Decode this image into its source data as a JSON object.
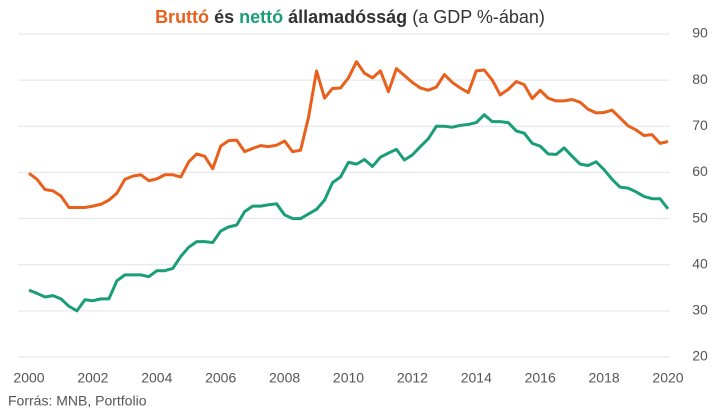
{
  "chart_data": {
    "type": "line",
    "series": [
      {
        "name": "Bruttó",
        "color": "#e8601c",
        "values": [
          59.8,
          58.5,
          56.3,
          56.0,
          54.9,
          52.4,
          52.4,
          52.4,
          52.7,
          53.1,
          54.0,
          55.5,
          58.5,
          59.2,
          59.5,
          58.2,
          58.6,
          59.5,
          59.5,
          59.0,
          62.3,
          64.0,
          63.5,
          60.8,
          65.7,
          66.9,
          67.0,
          64.5,
          65.2,
          65.8,
          65.6,
          65.9,
          66.8,
          64.5,
          64.8,
          72.0,
          82.0,
          76.1,
          78.2,
          78.3,
          80.5,
          84.0,
          81.5,
          80.5,
          82.0,
          77.5,
          82.5,
          81.0,
          79.5,
          78.3,
          77.8,
          78.5,
          81.2,
          79.5,
          78.3,
          77.3,
          82.0,
          82.2,
          80.0,
          76.8,
          78.0,
          79.7,
          79.0,
          76.0,
          77.8,
          76.1,
          75.5,
          75.5,
          75.8,
          75.2,
          73.7,
          72.9,
          73.0,
          73.5,
          71.8,
          70.1,
          69.2,
          68.0,
          68.2,
          66.3,
          66.7
        ]
      },
      {
        "name": "nettó",
        "color": "#1a9e77",
        "values": [
          34.5,
          33.8,
          33.0,
          33.3,
          32.6,
          31.0,
          30.0,
          32.4,
          32.2,
          32.6,
          32.6,
          36.5,
          37.8,
          37.8,
          37.8,
          37.4,
          38.7,
          38.7,
          39.2,
          41.8,
          43.8,
          45.0,
          45.0,
          44.8,
          47.3,
          48.2,
          48.6,
          51.5,
          52.7,
          52.7,
          53.0,
          53.2,
          50.8,
          50.0,
          50.0,
          51.0,
          52.0,
          54.0,
          57.8,
          59.0,
          62.2,
          61.8,
          62.8,
          61.3,
          63.3,
          64.2,
          65.0,
          62.7,
          63.8,
          65.6,
          67.3,
          70.0,
          70.0,
          69.8,
          70.2,
          70.4,
          70.8,
          72.5,
          71.0,
          71.0,
          70.8,
          69.0,
          68.5,
          66.3,
          65.7,
          64.0,
          63.9,
          65.3,
          63.5,
          61.8,
          61.5,
          62.3,
          60.6,
          58.5,
          56.8,
          56.6,
          55.8,
          54.8,
          54.3,
          54.3,
          52.1
        ]
      }
    ],
    "title_words": [
      "és",
      "államadósság",
      "(a GDP %-ában)"
    ],
    "source": "Forrás: MNB, Portfolio",
    "x": [
      2000,
      2000.25,
      2000.5,
      2000.75,
      2001,
      2001.25,
      2001.5,
      2001.75,
      2002,
      2002.25,
      2002.5,
      2002.75,
      2003,
      2003.25,
      2003.5,
      2003.75,
      2004,
      2004.25,
      2004.5,
      2004.75,
      2005,
      2005.25,
      2005.5,
      2005.75,
      2006,
      2006.25,
      2006.5,
      2006.75,
      2007,
      2007.25,
      2007.5,
      2007.75,
      2008,
      2008.25,
      2008.5,
      2008.75,
      2009,
      2009.25,
      2009.5,
      2009.75,
      2010,
      2010.25,
      2010.5,
      2010.75,
      2011,
      2011.25,
      2011.5,
      2011.75,
      2012,
      2012.25,
      2012.5,
      2012.75,
      2013,
      2013.25,
      2013.5,
      2013.75,
      2014,
      2014.25,
      2014.5,
      2014.75,
      2015,
      2015.25,
      2015.5,
      2015.75,
      2016,
      2016.25,
      2016.5,
      2016.75,
      2017,
      2017.25,
      2017.5,
      2017.75,
      2018,
      2018.25,
      2018.5,
      2018.75,
      2019,
      2019.25,
      2019.5,
      2019.75,
      2020
    ],
    "xlim": [
      2000,
      2020
    ],
    "xticks": [
      2000,
      2002,
      2004,
      2006,
      2008,
      2010,
      2012,
      2014,
      2016,
      2018,
      2020
    ],
    "ylim": [
      20,
      90
    ],
    "yticks": [
      20,
      30,
      40,
      50,
      60,
      70,
      80,
      90
    ],
    "grid": true
  }
}
